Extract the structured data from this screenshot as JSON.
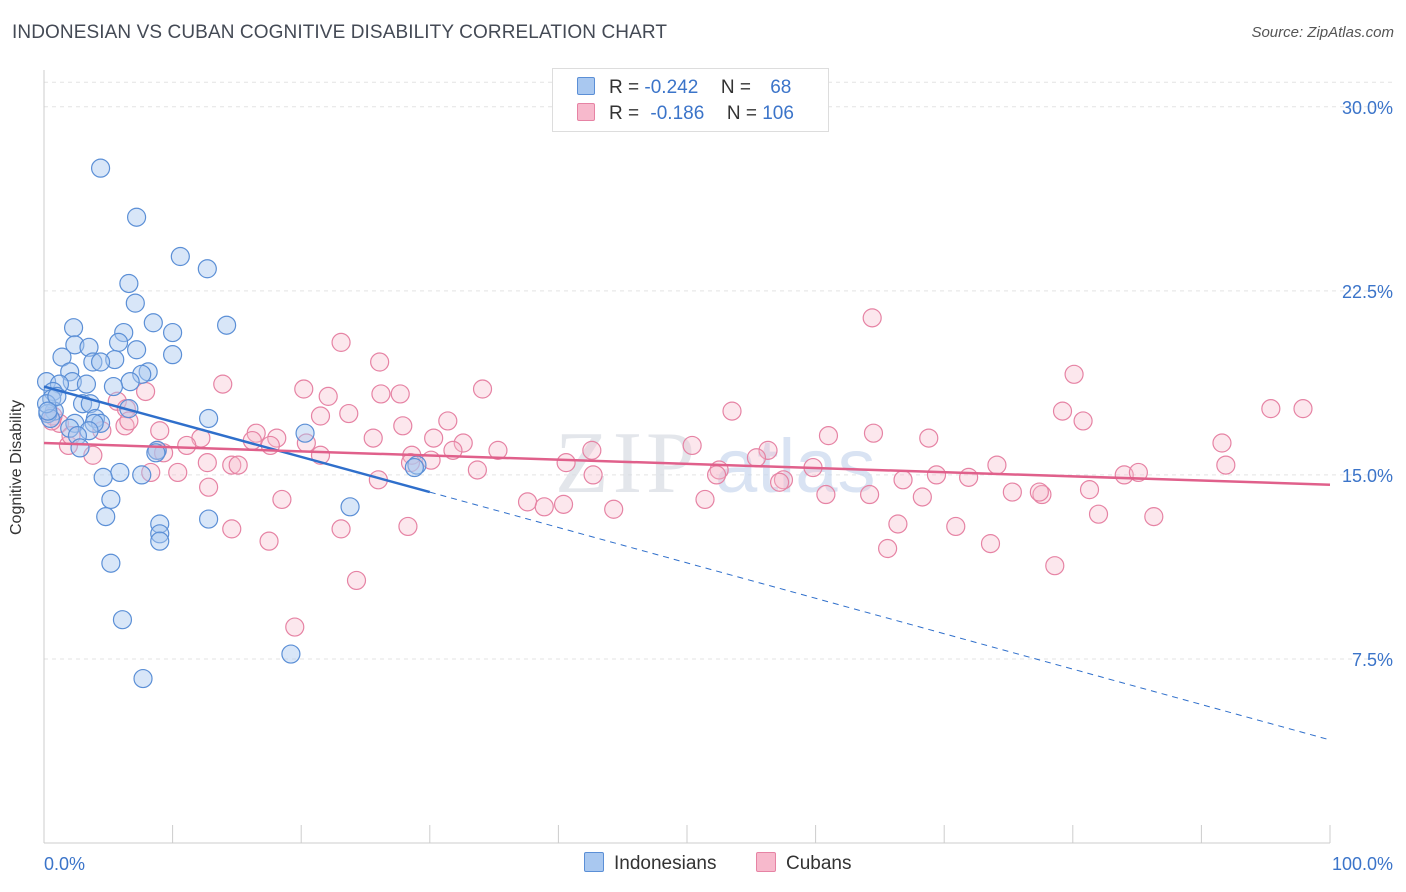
{
  "title": "INDONESIAN VS CUBAN COGNITIVE DISABILITY CORRELATION CHART",
  "source": "Source: ZipAtlas.com",
  "watermark": {
    "zip": "ZIP",
    "atlas": "atlas"
  },
  "legend": {
    "rows": [
      {
        "r_label": "R =",
        "r_value": "-0.242",
        "n_label": "N =",
        "n_value": "68",
        "color": "#a9c8f0"
      },
      {
        "r_label": "R =",
        "r_value": "-0.186",
        "n_label": "N =",
        "n_value": "106",
        "color": "#f7b9cc"
      }
    ]
  },
  "bottom_legend": [
    "Indonesians",
    "Cubans"
  ],
  "colors": {
    "blue_fill": "#a9c8f0",
    "blue_stroke": "#5b8fd6",
    "blue_line": "#2f6fcb",
    "pink_fill": "#f7b9cc",
    "pink_stroke": "#e683a4",
    "pink_line": "#e0608b",
    "grid": "#e3e3e3",
    "tick_label": "#3b74c9"
  },
  "chart_data": {
    "type": "scatter",
    "title": "INDONESIAN VS CUBAN COGNITIVE DISABILITY CORRELATION CHART",
    "xlabel": "",
    "ylabel": "Cognitive Disability",
    "xlim": [
      0,
      100
    ],
    "ylim": [
      0,
      31.5
    ],
    "x_tick_labels": [
      "0.0%",
      "100.0%"
    ],
    "y_ticks": [
      7.5,
      15.0,
      22.5,
      30.0
    ],
    "y_tick_labels": [
      "7.5%",
      "15.0%",
      "22.5%",
      "30.0%"
    ],
    "grid": "horizontal dashed",
    "series": [
      {
        "name": "Indonesians",
        "r": -0.242,
        "n": 68,
        "trend": {
          "x0": 0,
          "y0": 18.6,
          "x1": 30,
          "y1": 14.3,
          "extended_to": [
            100,
            4.2
          ]
        },
        "points": [
          [
            4.4,
            27.5
          ],
          [
            7.2,
            25.5
          ],
          [
            10.6,
            23.9
          ],
          [
            12.7,
            23.4
          ],
          [
            6.6,
            22.8
          ],
          [
            7.1,
            22.0
          ],
          [
            8.5,
            21.2
          ],
          [
            14.2,
            21.1
          ],
          [
            2.3,
            21.0
          ],
          [
            10.0,
            20.8
          ],
          [
            6.2,
            20.8
          ],
          [
            5.8,
            20.4
          ],
          [
            2.4,
            20.3
          ],
          [
            3.5,
            20.2
          ],
          [
            7.2,
            20.1
          ],
          [
            10.0,
            19.9
          ],
          [
            1.4,
            19.8
          ],
          [
            5.5,
            19.7
          ],
          [
            3.8,
            19.6
          ],
          [
            4.4,
            19.6
          ],
          [
            8.1,
            19.2
          ],
          [
            2.0,
            19.2
          ],
          [
            7.6,
            19.1
          ],
          [
            0.2,
            18.8
          ],
          [
            2.2,
            18.8
          ],
          [
            1.2,
            18.7
          ],
          [
            6.7,
            18.8
          ],
          [
            3.3,
            18.7
          ],
          [
            5.4,
            18.6
          ],
          [
            0.7,
            18.4
          ],
          [
            0.6,
            18.1
          ],
          [
            3.0,
            17.9
          ],
          [
            3.6,
            17.9
          ],
          [
            6.6,
            17.7
          ],
          [
            0.8,
            17.6
          ],
          [
            0.3,
            17.5
          ],
          [
            12.8,
            17.3
          ],
          [
            4.0,
            17.3
          ],
          [
            4.4,
            17.1
          ],
          [
            0.5,
            17.3
          ],
          [
            2.4,
            17.1
          ],
          [
            3.9,
            17.1
          ],
          [
            2.0,
            16.9
          ],
          [
            3.5,
            16.8
          ],
          [
            20.3,
            16.7
          ],
          [
            2.6,
            16.6
          ],
          [
            2.8,
            16.1
          ],
          [
            8.8,
            16.0
          ],
          [
            8.7,
            15.9
          ],
          [
            29.0,
            15.4
          ],
          [
            28.8,
            15.3
          ],
          [
            5.9,
            15.1
          ],
          [
            7.6,
            15.0
          ],
          [
            4.6,
            14.9
          ],
          [
            5.2,
            14.0
          ],
          [
            23.8,
            13.7
          ],
          [
            4.8,
            13.3
          ],
          [
            12.8,
            13.2
          ],
          [
            9.0,
            13.0
          ],
          [
            9.0,
            12.6
          ],
          [
            9.0,
            12.3
          ],
          [
            5.2,
            11.4
          ],
          [
            6.1,
            9.1
          ],
          [
            19.2,
            7.7
          ],
          [
            7.7,
            6.7
          ],
          [
            0.2,
            17.9
          ],
          [
            1.0,
            18.2
          ],
          [
            0.3,
            17.6
          ]
        ]
      },
      {
        "name": "Cubans",
        "r": -0.186,
        "n": 106,
        "trend": {
          "x0": 0,
          "y0": 16.3,
          "x1": 100,
          "y1": 14.6
        },
        "points": [
          [
            64.4,
            21.4
          ],
          [
            23.1,
            20.4
          ],
          [
            26.1,
            19.6
          ],
          [
            64.5,
            16.7
          ],
          [
            80.1,
            19.1
          ],
          [
            13.9,
            18.7
          ],
          [
            34.1,
            18.5
          ],
          [
            20.2,
            18.5
          ],
          [
            7.9,
            18.4
          ],
          [
            27.7,
            18.3
          ],
          [
            26.2,
            18.3
          ],
          [
            22.1,
            18.2
          ],
          [
            5.7,
            18.0
          ],
          [
            6.4,
            17.7
          ],
          [
            95.4,
            17.7
          ],
          [
            79.2,
            17.6
          ],
          [
            53.5,
            17.6
          ],
          [
            23.7,
            17.5
          ],
          [
            97.9,
            17.7
          ],
          [
            21.5,
            17.4
          ],
          [
            80.8,
            17.2
          ],
          [
            31.4,
            17.2
          ],
          [
            27.9,
            17.0
          ],
          [
            6.3,
            17.0
          ],
          [
            1.2,
            17.1
          ],
          [
            0.7,
            17.4
          ],
          [
            4.5,
            16.8
          ],
          [
            16.5,
            16.7
          ],
          [
            18.1,
            16.5
          ],
          [
            12.2,
            16.5
          ],
          [
            61.0,
            16.6
          ],
          [
            68.8,
            16.5
          ],
          [
            30.3,
            16.5
          ],
          [
            32.6,
            16.3
          ],
          [
            91.6,
            16.3
          ],
          [
            25.6,
            16.5
          ],
          [
            16.2,
            16.4
          ],
          [
            17.6,
            16.2
          ],
          [
            1.9,
            16.2
          ],
          [
            11.1,
            16.2
          ],
          [
            20.4,
            16.3
          ],
          [
            8.8,
            16.0
          ],
          [
            31.8,
            16.0
          ],
          [
            9.3,
            15.9
          ],
          [
            35.3,
            16.0
          ],
          [
            42.6,
            16.0
          ],
          [
            56.3,
            16.0
          ],
          [
            55.4,
            15.7
          ],
          [
            50.4,
            16.2
          ],
          [
            21.5,
            15.8
          ],
          [
            3.8,
            15.8
          ],
          [
            28.6,
            15.8
          ],
          [
            30.1,
            15.6
          ],
          [
            12.7,
            15.5
          ],
          [
            14.6,
            15.4
          ],
          [
            15.1,
            15.4
          ],
          [
            40.6,
            15.5
          ],
          [
            74.1,
            15.4
          ],
          [
            59.8,
            15.3
          ],
          [
            52.5,
            15.2
          ],
          [
            33.7,
            15.2
          ],
          [
            28.5,
            15.5
          ],
          [
            10.4,
            15.1
          ],
          [
            8.3,
            15.1
          ],
          [
            12.8,
            14.5
          ],
          [
            69.4,
            15.0
          ],
          [
            71.9,
            14.9
          ],
          [
            81.3,
            14.4
          ],
          [
            52.3,
            15.0
          ],
          [
            42.7,
            15.0
          ],
          [
            57.5,
            14.8
          ],
          [
            57.2,
            14.7
          ],
          [
            66.8,
            14.8
          ],
          [
            26.0,
            14.8
          ],
          [
            84.0,
            15.0
          ],
          [
            91.9,
            15.4
          ],
          [
            75.3,
            14.3
          ],
          [
            77.6,
            14.2
          ],
          [
            51.4,
            14.0
          ],
          [
            60.8,
            14.2
          ],
          [
            68.3,
            14.1
          ],
          [
            37.6,
            13.9
          ],
          [
            38.9,
            13.7
          ],
          [
            40.4,
            13.8
          ],
          [
            44.3,
            13.6
          ],
          [
            64.2,
            14.2
          ],
          [
            18.5,
            14.0
          ],
          [
            70.9,
            12.9
          ],
          [
            82.0,
            13.4
          ],
          [
            66.4,
            13.0
          ],
          [
            86.3,
            13.3
          ],
          [
            65.6,
            12.0
          ],
          [
            73.6,
            12.2
          ],
          [
            14.6,
            12.8
          ],
          [
            23.1,
            12.8
          ],
          [
            28.3,
            12.9
          ],
          [
            17.5,
            12.3
          ],
          [
            78.6,
            11.3
          ],
          [
            24.3,
            10.7
          ],
          [
            19.5,
            8.8
          ],
          [
            9.0,
            16.8
          ],
          [
            6.6,
            17.2
          ],
          [
            2.1,
            16.6
          ],
          [
            0.6,
            17.2
          ],
          [
            77.4,
            14.3
          ],
          [
            85.1,
            15.1
          ]
        ]
      }
    ]
  }
}
